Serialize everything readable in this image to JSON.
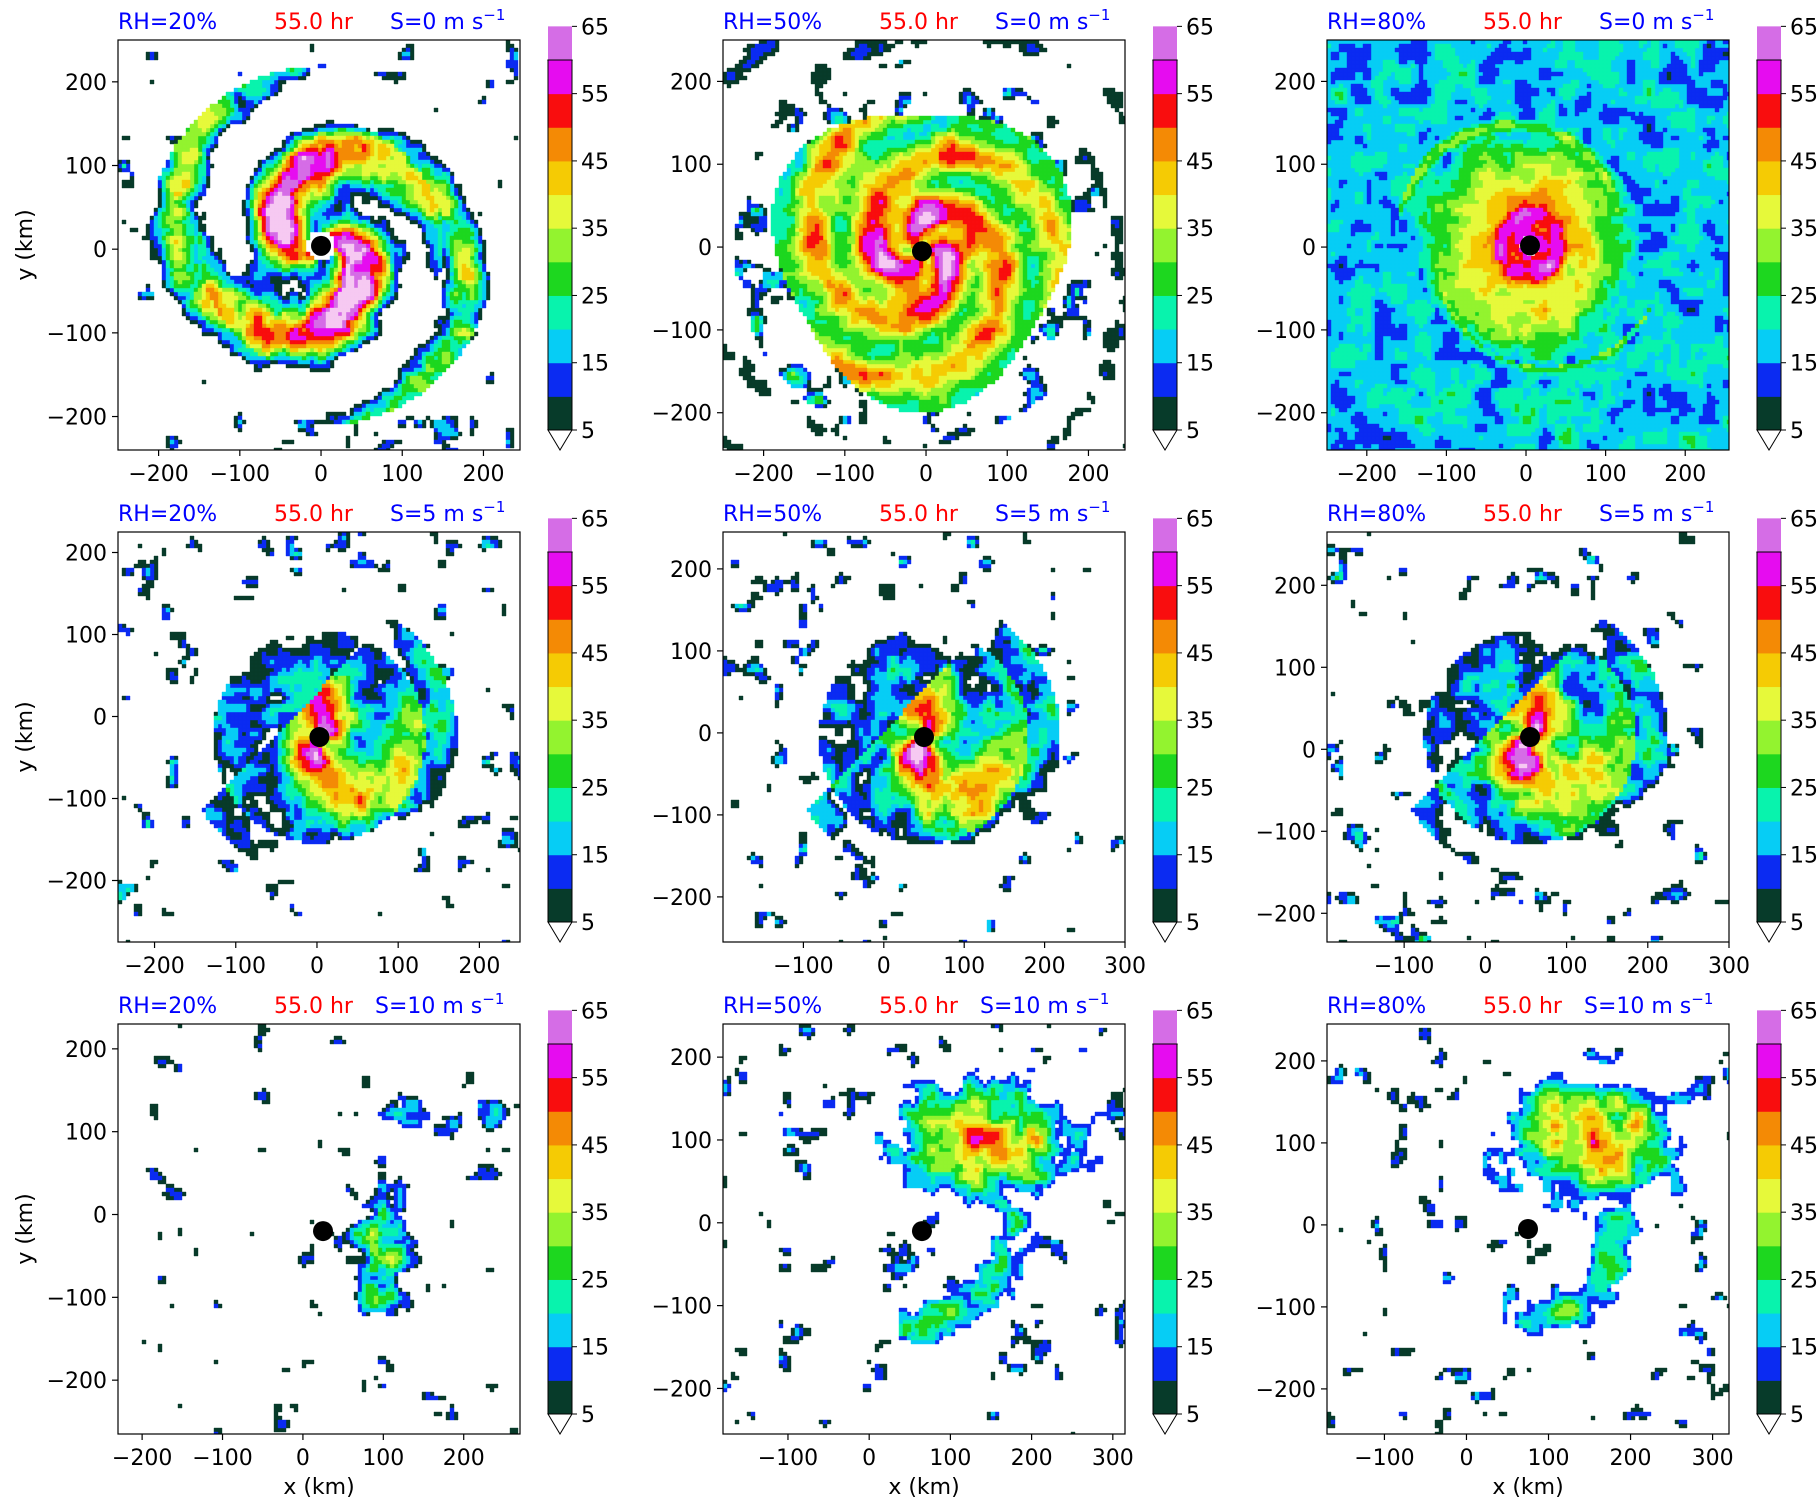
{
  "figure": {
    "x_axis_label": "x (km)",
    "y_axis_label": "y (km)"
  },
  "colorbar": {
    "levels": [
      5,
      10,
      15,
      20,
      25,
      30,
      35,
      40,
      45,
      50,
      55,
      60,
      65,
      70
    ],
    "tick_labels": [
      "5",
      "15",
      "25",
      "35",
      "45",
      "55",
      "65"
    ],
    "colors": [
      "#073b2a",
      "#0b2bf2",
      "#06cdf5",
      "#08f3ad",
      "#1dd71f",
      "#93f32f",
      "#e6f93a",
      "#f5cb04",
      "#f48a05",
      "#f90d0e",
      "#e60cf0",
      "#d56de6",
      "#f6c9f2"
    ],
    "extend": "both"
  },
  "chart_data": [
    {
      "type": "heatmap",
      "row": 0,
      "col": 0,
      "rh_label": "RH=20%",
      "time_label": "55.0 hr",
      "shear_label": "S=0 m s",
      "shear_exp": "−1",
      "x_ticks": [
        "−200",
        "−100",
        "0",
        "100",
        "200"
      ],
      "y_ticks": [
        "−200",
        "−100",
        "0",
        "100",
        "200"
      ],
      "xlim": [
        -250,
        245
      ],
      "ylim": [
        -240,
        250
      ],
      "center": [
        0,
        4
      ],
      "inner_core": "spiral bands",
      "compact": false,
      "shear_dir": [
        0,
        0
      ]
    },
    {
      "type": "heatmap",
      "row": 0,
      "col": 1,
      "rh_label": "RH=50%",
      "time_label": "55.0 hr",
      "shear_label": "S=0 m s",
      "shear_exp": "−1",
      "x_ticks": [
        "−200",
        "−100",
        "0",
        "100",
        "200"
      ],
      "y_ticks": [
        "−200",
        "−100",
        "0",
        "100",
        "200"
      ],
      "xlim": [
        -250,
        245
      ],
      "ylim": [
        -245,
        250
      ],
      "center": [
        -5,
        -5
      ],
      "inner_core": "broad annulus",
      "compact": false,
      "shear_dir": [
        0,
        0
      ]
    },
    {
      "type": "heatmap",
      "row": 0,
      "col": 2,
      "rh_label": "RH=80%",
      "time_label": "55.0 hr",
      "shear_label": "S=0 m s",
      "shear_exp": "−1",
      "x_ticks": [
        "−200",
        "−100",
        "0",
        "100",
        "200"
      ],
      "y_ticks": [
        "−200",
        "−100",
        "0",
        "100",
        "200"
      ],
      "xlim": [
        -250,
        255
      ],
      "ylim": [
        -245,
        250
      ],
      "center": [
        5,
        2
      ],
      "inner_core": "compact intense",
      "compact": true,
      "shear_dir": [
        0,
        0
      ]
    },
    {
      "type": "heatmap",
      "row": 1,
      "col": 0,
      "rh_label": "RH=20%",
      "time_label": "55.0 hr",
      "shear_label": "S=5 m s",
      "shear_exp": "−1",
      "x_ticks": [
        "−200",
        "−100",
        "0",
        "100",
        "200"
      ],
      "y_ticks": [
        "−200",
        "−100",
        "0",
        "100",
        "200"
      ],
      "xlim": [
        -245,
        250
      ],
      "ylim": [
        -275,
        225
      ],
      "center": [
        3,
        -25
      ],
      "inner_core": "sheared",
      "compact": false,
      "shear_dir": [
        1,
        -1
      ]
    },
    {
      "type": "heatmap",
      "row": 1,
      "col": 1,
      "rh_label": "RH=50%",
      "time_label": "55.0 hr",
      "shear_label": "S=5 m s",
      "shear_exp": "−1",
      "x_ticks": [
        "−100",
        "0",
        "100",
        "200",
        "300"
      ],
      "y_ticks": [
        "−200",
        "−100",
        "0",
        "100",
        "200"
      ],
      "xlim": [
        -200,
        300
      ],
      "ylim": [
        -255,
        245
      ],
      "center": [
        50,
        -5
      ],
      "inner_core": "sheared",
      "compact": false,
      "shear_dir": [
        1,
        -1
      ]
    },
    {
      "type": "heatmap",
      "row": 1,
      "col": 2,
      "rh_label": "RH=80%",
      "time_label": "55.0 hr",
      "shear_label": "S=5 m s",
      "shear_exp": "−1",
      "x_ticks": [
        "−100",
        "0",
        "100",
        "200",
        "300"
      ],
      "y_ticks": [
        "−200",
        "−100",
        "0",
        "100",
        "200"
      ],
      "xlim": [
        -195,
        300
      ],
      "ylim": [
        -235,
        265
      ],
      "center": [
        55,
        15
      ],
      "inner_core": "sheared",
      "compact": false,
      "shear_dir": [
        1,
        -1
      ]
    },
    {
      "type": "heatmap",
      "row": 2,
      "col": 0,
      "rh_label": "RH=20%",
      "time_label": "55.0 hr",
      "shear_label": "S=10 m s",
      "shear_exp": "−1",
      "x_ticks": [
        "−200",
        "−100",
        "0",
        "100",
        "200"
      ],
      "y_ticks": [
        "−200",
        "−100",
        "0",
        "100",
        "200"
      ],
      "xlim": [
        -230,
        270
      ],
      "ylim": [
        -265,
        230
      ],
      "center": [
        25,
        -20
      ],
      "inner_core": "decoupled",
      "compact": false,
      "shear_dir": [
        1,
        0
      ]
    },
    {
      "type": "heatmap",
      "row": 2,
      "col": 1,
      "rh_label": "RH=50%",
      "time_label": "55.0 hr",
      "shear_label": "S=10 m s",
      "shear_exp": "−1",
      "x_ticks": [
        "−100",
        "0",
        "100",
        "200",
        "300"
      ],
      "y_ticks": [
        "−200",
        "−100",
        "0",
        "100",
        "200"
      ],
      "xlim": [
        -180,
        315
      ],
      "ylim": [
        -255,
        240
      ],
      "center": [
        65,
        -10
      ],
      "inner_core": "downshear blob",
      "compact": false,
      "shear_dir": [
        1,
        1
      ]
    },
    {
      "type": "heatmap",
      "row": 2,
      "col": 2,
      "rh_label": "RH=80%",
      "time_label": "55.0 hr",
      "shear_label": "S=10 m s",
      "shear_exp": "−1",
      "x_ticks": [
        "−100",
        "0",
        "100",
        "200",
        "300"
      ],
      "y_ticks": [
        "−200",
        "−100",
        "0",
        "100",
        "200"
      ],
      "xlim": [
        -170,
        320
      ],
      "ylim": [
        -255,
        245
      ],
      "center": [
        75,
        -5
      ],
      "inner_core": "downshear blob",
      "compact": false,
      "shear_dir": [
        1,
        1
      ]
    }
  ]
}
